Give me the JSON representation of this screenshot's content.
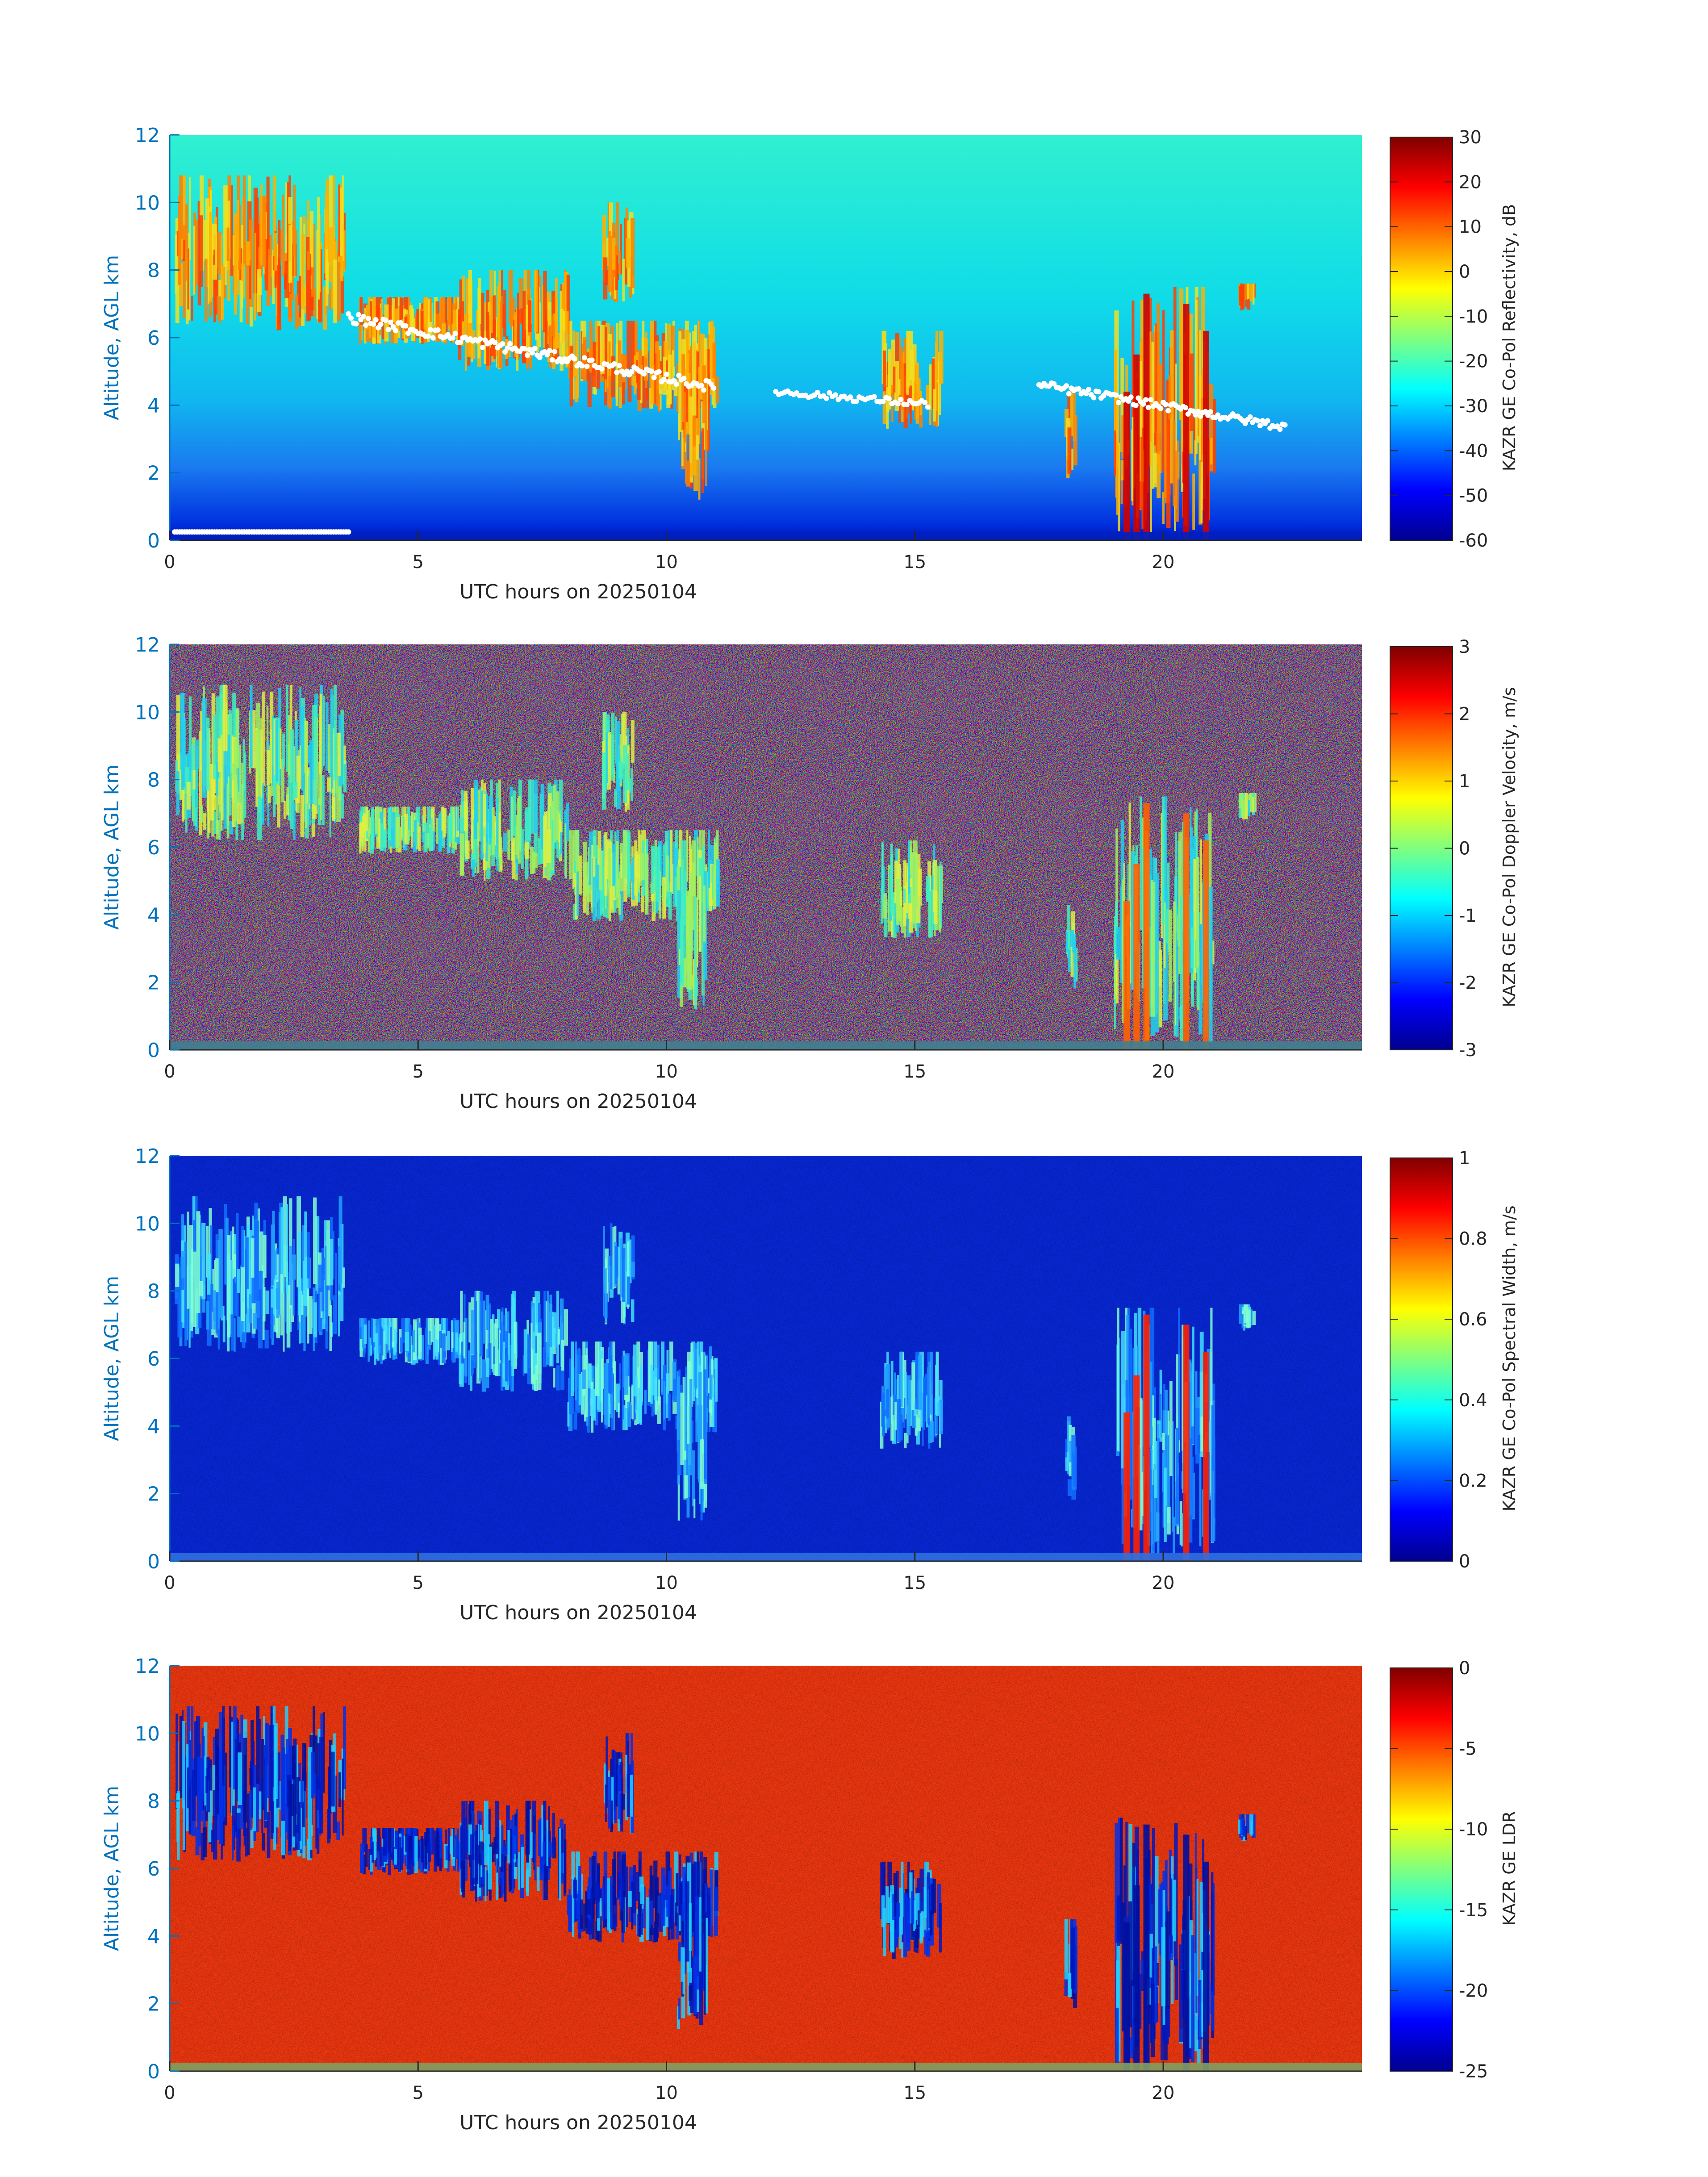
{
  "colors": {
    "axis_blue": "#0072bd",
    "text": "#262626"
  },
  "chart_data": [
    {
      "type": "heatmap",
      "xlabel": "UTC hours on 20250104",
      "ylabel": "Altitude, AGL km",
      "xlim": [
        0,
        24
      ],
      "ylim": [
        0,
        12
      ],
      "xticks": [
        "0",
        "5",
        "10",
        "15",
        "20"
      ],
      "yticks": [
        "0",
        "2",
        "4",
        "6",
        "8",
        "10",
        "12"
      ],
      "colorbar": {
        "label": "KAZR GE Co-Pol Reflectivity, dB",
        "range": [
          -60,
          30
        ],
        "ticks": [
          "-60",
          "-50",
          "-40",
          "-30",
          "-20",
          "-10",
          "0",
          "10",
          "20",
          "30"
        ]
      },
      "colormap": "jet"
    },
    {
      "type": "heatmap",
      "xlabel": "UTC hours on 20250104",
      "ylabel": "Altitude, AGL km",
      "xlim": [
        0,
        24
      ],
      "ylim": [
        0,
        12
      ],
      "xticks": [
        "0",
        "5",
        "10",
        "15",
        "20"
      ],
      "yticks": [
        "0",
        "2",
        "4",
        "6",
        "8",
        "10",
        "12"
      ],
      "colorbar": {
        "label": "KAZR GE Co-Pol Doppler Velocity, m/s",
        "range": [
          -3,
          3
        ],
        "ticks": [
          "-3",
          "-2",
          "-1",
          "0",
          "1",
          "2",
          "3"
        ]
      },
      "colormap": "jet"
    },
    {
      "type": "heatmap",
      "xlabel": "UTC hours on 20250104",
      "ylabel": "Altitude, AGL km",
      "xlim": [
        0,
        24
      ],
      "ylim": [
        0,
        12
      ],
      "xticks": [
        "0",
        "5",
        "10",
        "15",
        "20"
      ],
      "yticks": [
        "0",
        "2",
        "4",
        "6",
        "8",
        "10",
        "12"
      ],
      "colorbar": {
        "label": "KAZR GE Co-Pol Spectral Width, m/s",
        "range": [
          0,
          1
        ],
        "ticks": [
          "0",
          "0.2",
          "0.4",
          "0.6",
          "0.8",
          "1"
        ]
      },
      "colormap": "jet"
    },
    {
      "type": "heatmap",
      "xlabel": "UTC hours on 20250104",
      "ylabel": "Altitude, AGL km",
      "xlim": [
        0,
        24
      ],
      "ylim": [
        0,
        12
      ],
      "xticks": [
        "0",
        "5",
        "10",
        "15",
        "20"
      ],
      "yticks": [
        "0",
        "2",
        "4",
        "6",
        "8",
        "10",
        "12"
      ],
      "colorbar": {
        "label": "KAZR GE LDR",
        "range": [
          -25,
          0
        ],
        "ticks": [
          "-25",
          "-20",
          "-15",
          "-10",
          "-5",
          "0"
        ]
      },
      "colormap": "jet"
    }
  ]
}
